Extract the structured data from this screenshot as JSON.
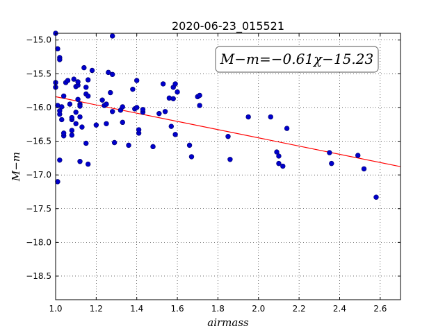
{
  "chart_data": {
    "type": "scatter",
    "title": "2020-06-23_015521",
    "xlabel": "airmass",
    "ylabel": "M−m",
    "xlim": [
      1.0,
      2.7
    ],
    "ylim": [
      -18.85,
      -14.9
    ],
    "y_inverted": true,
    "grid": true,
    "xticks": [
      "1.0",
      "1.2",
      "1.4",
      "1.6",
      "1.8",
      "2.0",
      "2.2",
      "2.4",
      "2.6"
    ],
    "yticks": [
      "−15.0",
      "−15.5",
      "−16.0",
      "−16.5",
      "−17.0",
      "−17.5",
      "−18.0",
      "−18.5"
    ],
    "annotation": "M−m=−0.61χ−15.23",
    "fit": {
      "slope": -0.61,
      "intercept": -15.23,
      "color": "#ff0000"
    },
    "marker_color": "#0000cc",
    "points": [
      [
        1.0,
        -14.9
      ],
      [
        1.01,
        -15.13
      ],
      [
        1.02,
        -15.26
      ],
      [
        1.02,
        -15.29
      ],
      [
        1.0,
        -15.63
      ],
      [
        1.0,
        -15.7
      ],
      [
        1.01,
        -15.97
      ],
      [
        1.02,
        -16.05
      ],
      [
        1.02,
        -16.1
      ],
      [
        1.03,
        -16.18
      ],
      [
        1.03,
        -15.99
      ],
      [
        1.04,
        -15.83
      ],
      [
        1.04,
        -16.42
      ],
      [
        1.04,
        -16.38
      ],
      [
        1.02,
        -16.78
      ],
      [
        1.01,
        -17.1
      ],
      [
        1.05,
        -15.63
      ],
      [
        1.06,
        -15.6
      ],
      [
        1.07,
        -15.95
      ],
      [
        1.08,
        -16.18
      ],
      [
        1.08,
        -16.15
      ],
      [
        1.08,
        -16.34
      ],
      [
        1.08,
        -16.41
      ],
      [
        1.09,
        -15.58
      ],
      [
        1.1,
        -15.69
      ],
      [
        1.1,
        -16.07
      ],
      [
        1.1,
        -16.24
      ],
      [
        1.11,
        -15.67
      ],
      [
        1.11,
        -15.62
      ],
      [
        1.11,
        -15.88
      ],
      [
        1.12,
        -15.95
      ],
      [
        1.12,
        -15.98
      ],
      [
        1.12,
        -16.14
      ],
      [
        1.13,
        -16.29
      ],
      [
        1.12,
        -16.8
      ],
      [
        1.14,
        -15.41
      ],
      [
        1.15,
        -15.7
      ],
      [
        1.15,
        -15.8
      ],
      [
        1.16,
        -15.59
      ],
      [
        1.16,
        -15.83
      ],
      [
        1.15,
        -16.53
      ],
      [
        1.16,
        -16.84
      ],
      [
        1.18,
        -15.45
      ],
      [
        1.2,
        -16.26
      ],
      [
        1.23,
        -15.89
      ],
      [
        1.24,
        -15.97
      ],
      [
        1.25,
        -15.95
      ],
      [
        1.25,
        -16.24
      ],
      [
        1.26,
        -15.48
      ],
      [
        1.27,
        -15.78
      ],
      [
        1.28,
        -15.51
      ],
      [
        1.28,
        -16.06
      ],
      [
        1.28,
        -14.94
      ],
      [
        1.29,
        -16.52
      ],
      [
        1.32,
        -16.04
      ],
      [
        1.33,
        -15.99
      ],
      [
        1.33,
        -16.22
      ],
      [
        1.36,
        -16.56
      ],
      [
        1.38,
        -15.73
      ],
      [
        1.39,
        -16.02
      ],
      [
        1.4,
        -15.6
      ],
      [
        1.4,
        -16.0
      ],
      [
        1.41,
        -16.38
      ],
      [
        1.41,
        -16.33
      ],
      [
        1.43,
        -16.07
      ],
      [
        1.43,
        -16.03
      ],
      [
        1.48,
        -16.58
      ],
      [
        1.51,
        -16.09
      ],
      [
        1.53,
        -15.65
      ],
      [
        1.54,
        -16.06
      ],
      [
        1.56,
        -15.86
      ],
      [
        1.57,
        -16.28
      ],
      [
        1.58,
        -15.87
      ],
      [
        1.58,
        -15.7
      ],
      [
        1.59,
        -15.65
      ],
      [
        1.59,
        -16.4
      ],
      [
        1.6,
        -15.77
      ],
      [
        1.66,
        -16.56
      ],
      [
        1.67,
        -16.73
      ],
      [
        1.7,
        -15.84
      ],
      [
        1.71,
        -15.82
      ],
      [
        1.71,
        -15.97
      ],
      [
        1.85,
        -16.43
      ],
      [
        1.86,
        -16.77
      ],
      [
        1.95,
        -16.14
      ],
      [
        2.06,
        -16.14
      ],
      [
        2.09,
        -16.66
      ],
      [
        2.1,
        -16.72
      ],
      [
        2.1,
        -16.83
      ],
      [
        2.12,
        -16.87
      ],
      [
        2.14,
        -16.31
      ],
      [
        2.35,
        -16.67
      ],
      [
        2.36,
        -16.83
      ],
      [
        2.49,
        -16.71
      ],
      [
        2.52,
        -16.91
      ],
      [
        2.58,
        -17.33
      ]
    ]
  }
}
